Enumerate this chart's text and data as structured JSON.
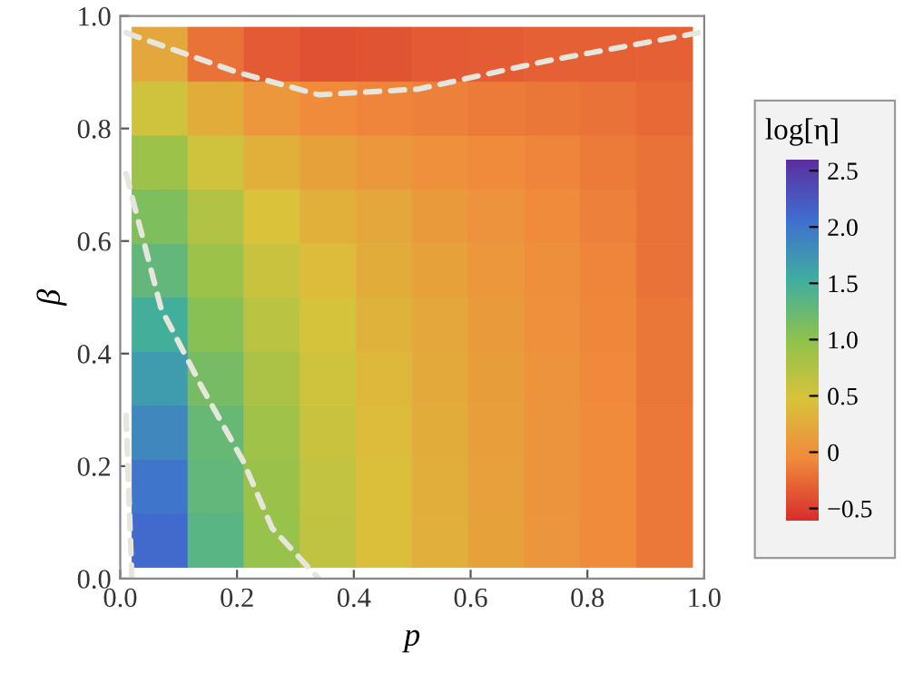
{
  "chart_data": {
    "type": "heatmap",
    "xlabel": "p",
    "ylabel": "β",
    "clabel": "log[η]",
    "x": [
      0.068,
      0.164,
      0.26,
      0.356,
      0.452,
      0.548,
      0.644,
      0.74,
      0.836,
      0.932
    ],
    "y": [
      0.932,
      0.836,
      0.74,
      0.644,
      0.548,
      0.452,
      0.356,
      0.26,
      0.164,
      0.068
    ],
    "cells": [
      [
        0.2,
        -0.2,
        -0.35,
        -0.4,
        -0.38,
        -0.35,
        -0.33,
        -0.3,
        -0.3,
        -0.3
      ],
      [
        0.55,
        0.25,
        0.05,
        -0.05,
        -0.1,
        -0.12,
        -0.15,
        -0.18,
        -0.2,
        -0.25
      ],
      [
        0.9,
        0.55,
        0.3,
        0.15,
        0.05,
        0,
        -0.05,
        -0.1,
        -0.15,
        -0.2
      ],
      [
        1.1,
        0.75,
        0.45,
        0.3,
        0.2,
        0.1,
        0.02,
        -0.05,
        -0.12,
        -0.2
      ],
      [
        1.3,
        0.9,
        0.6,
        0.4,
        0.25,
        0.15,
        0.05,
        -0.02,
        -0.1,
        -0.2
      ],
      [
        1.5,
        1.05,
        0.7,
        0.5,
        0.32,
        0.2,
        0.1,
        0,
        -0.08,
        -0.18
      ],
      [
        1.7,
        1.15,
        0.8,
        0.55,
        0.37,
        0.23,
        0.12,
        0.02,
        -0.07,
        -0.18
      ],
      [
        1.85,
        1.25,
        0.88,
        0.6,
        0.4,
        0.25,
        0.13,
        0.03,
        -0.06,
        -0.17
      ],
      [
        2.0,
        1.3,
        0.92,
        0.63,
        0.42,
        0.27,
        0.14,
        0.03,
        -0.06,
        -0.17
      ],
      [
        2.1,
        1.35,
        0.95,
        0.65,
        0.43,
        0.28,
        0.15,
        0.04,
        -0.05,
        -0.17
      ]
    ],
    "colors": [
      "#d7302c",
      "#f08a3c",
      "#d9c33a",
      "#8fc24d",
      "#3fae9f",
      "#3f6fd0",
      "#5c2ea0"
    ],
    "clim": [
      -0.6,
      2.6
    ],
    "cticks": [
      {
        "value": -0.5,
        "label": "−0.5"
      },
      0,
      0.5,
      {
        "value": 1,
        "label": "1.0"
      },
      1.5,
      {
        "value": 2,
        "label": "2.0"
      },
      2.5
    ],
    "series": [
      {
        "type": "line",
        "color": "#e6e6dc",
        "line_style": "dashed",
        "x": [
          0.01,
          0.07,
          0.14,
          0.21,
          0.26,
          0.34
        ],
        "values": [
          0.72,
          0.48,
          0.34,
          0.21,
          0.09,
          0.0
        ]
      },
      {
        "type": "line",
        "color": "#e6e6dc",
        "line_style": "dashed",
        "x": [
          0.01,
          0.2,
          0.34,
          0.51,
          0.73,
          0.99
        ],
        "values": [
          0.97,
          0.9,
          0.86,
          0.87,
          0.92,
          0.97
        ]
      },
      {
        "type": "line",
        "color": "#e6e6dc",
        "line_style": "dashed",
        "x": [
          0.01,
          0.02
        ],
        "values": [
          0.29,
          0.0
        ]
      }
    ],
    "xlim": [
      0,
      1
    ],
    "ylim": [
      0,
      1
    ],
    "xticks": [
      {
        "value": 0,
        "label": "0.0"
      },
      0.2,
      0.4,
      0.6,
      0.8,
      {
        "value": 1,
        "label": "1.0"
      }
    ],
    "yticks": [
      {
        "value": 0,
        "label": "0.0"
      },
      0.2,
      0.4,
      0.6,
      0.8,
      {
        "value": 1,
        "label": "1.0"
      }
    ],
    "grid": false
  }
}
